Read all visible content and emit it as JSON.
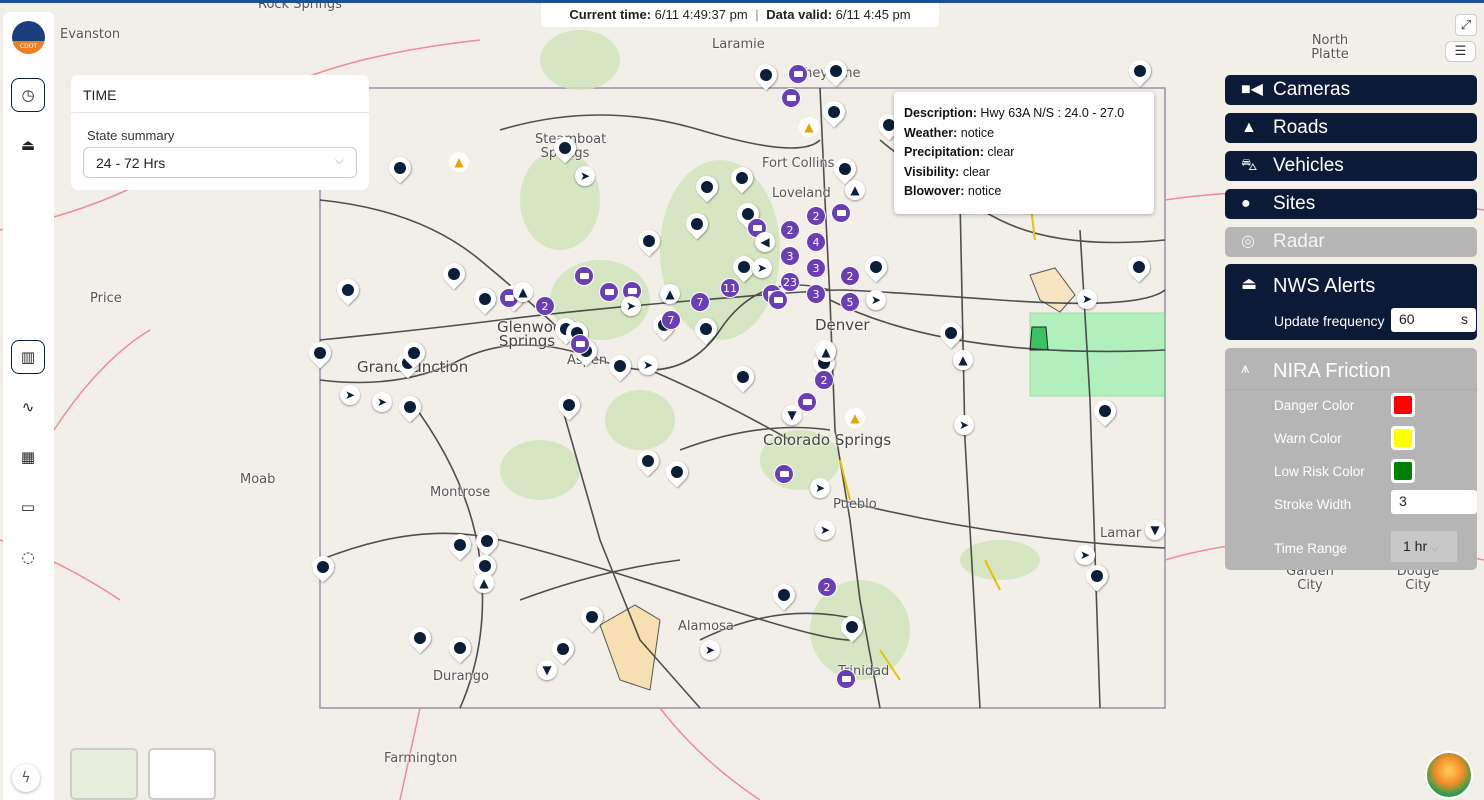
{
  "status_bar": {
    "current_time_label": "Current time:",
    "current_time": "6/11 4:49:37 pm",
    "separator": "|",
    "data_valid_label": "Data valid:",
    "data_valid": "6/11 4:45 pm"
  },
  "sidebar": {
    "logo_text": "CDOT",
    "items": [
      {
        "icon": "clock-icon",
        "active": true
      },
      {
        "icon": "alarm-icon"
      },
      {
        "icon": "map-icon",
        "active": true
      },
      {
        "icon": "route-icon"
      },
      {
        "icon": "table-icon"
      },
      {
        "icon": "layers-icon"
      },
      {
        "icon": "dashed-circle-icon"
      }
    ],
    "bottom_icon": "bolt-icon"
  },
  "time_panel": {
    "title": "TIME",
    "state_summary_label": "State summary",
    "state_summary_value": "24 - 72 Hrs"
  },
  "tooltip": {
    "description_label": "Description:",
    "description": "Hwy 63A N/S : 24.0 - 27.0",
    "weather_label": "Weather:",
    "weather": "notice",
    "precipitation_label": "Precipitation:",
    "precipitation": "clear",
    "visibility_label": "Visibility:",
    "visibility": "clear",
    "blowover_label": "Blowover:",
    "blowover": "notice"
  },
  "layers": {
    "cameras": {
      "label": "Cameras",
      "icon": "video-camera-icon"
    },
    "roads": {
      "label": "Roads",
      "icon": "road-icon"
    },
    "vehicles": {
      "label": "Vehicles",
      "icon": "car-icon"
    },
    "sites": {
      "label": "Sites",
      "icon": "map-pin-icon"
    },
    "radar": {
      "label": "Radar",
      "icon": "radar-icon",
      "disabled": true
    },
    "nws": {
      "label": "NWS Alerts",
      "icon": "alarm-icon",
      "update_frequency_label": "Update frequency",
      "update_frequency": "60",
      "unit": "s"
    },
    "nira": {
      "label": "NIRA Friction",
      "icon": "road-friction-icon",
      "disabled": true,
      "danger_label": "Danger Color",
      "danger_color": "#ff0000",
      "warn_label": "Warn Color",
      "warn_color": "#ffff00",
      "low_label": "Low Risk Color",
      "low_color": "#008000",
      "stroke_label": "Stroke Width",
      "stroke_width": "3",
      "time_range_label": "Time Range",
      "time_range": "1 hr"
    }
  },
  "map": {
    "cities": [
      "Evanston",
      "Rock Springs",
      "Laramie",
      "Cheyenne",
      "North Platte",
      "Steamboat Springs",
      "Fort Collins",
      "Loveland",
      "Price",
      "Glenwood Springs",
      "Grand Junction",
      "Aspen",
      "Denver",
      "Moab",
      "Montrose",
      "Colorado Springs",
      "Pueblo",
      "Lamar",
      "Garden City",
      "Dodge City",
      "Alamosa",
      "Durango",
      "Trinidad",
      "Farmington"
    ],
    "cluster_counts": [
      "2",
      "2",
      "4",
      "3",
      "3",
      "23",
      "11",
      "7",
      "7",
      "2",
      "5",
      "2",
      "2",
      "3",
      "2"
    ],
    "colors": {
      "state_border": "#9a8fa5",
      "highway": "#333333",
      "alert_zone": "#7cf09a",
      "friction_warn": "#e6c200"
    }
  }
}
